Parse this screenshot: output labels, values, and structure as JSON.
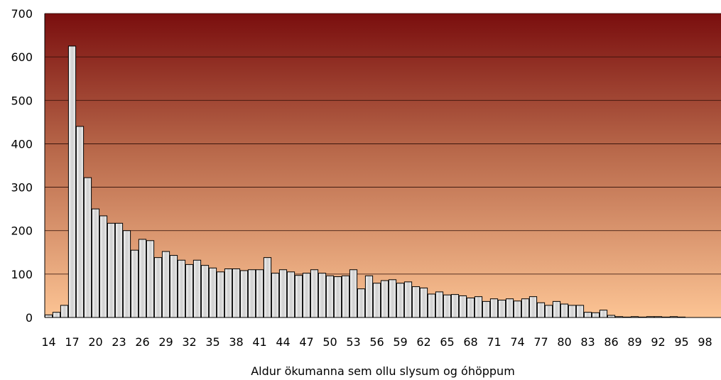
{
  "chart_data": {
    "type": "bar",
    "title": "",
    "xlabel": "Aldur ökumanna sem ollu slysum og óhöppum",
    "ylabel": "",
    "ylim": [
      0,
      700
    ],
    "yticks": [
      0,
      100,
      200,
      300,
      400,
      500,
      600,
      700
    ],
    "grid": true,
    "x_tick_labels": [
      14,
      17,
      20,
      23,
      26,
      29,
      32,
      35,
      38,
      41,
      44,
      47,
      50,
      53,
      56,
      59,
      62,
      65,
      68,
      71,
      74,
      77,
      80,
      83,
      86,
      89,
      92,
      95,
      98
    ],
    "categories": [
      14,
      15,
      16,
      17,
      18,
      19,
      20,
      21,
      22,
      23,
      24,
      25,
      26,
      27,
      28,
      29,
      30,
      31,
      32,
      33,
      34,
      35,
      36,
      37,
      38,
      39,
      40,
      41,
      42,
      43,
      44,
      45,
      46,
      47,
      48,
      49,
      50,
      51,
      52,
      53,
      54,
      55,
      56,
      57,
      58,
      59,
      60,
      61,
      62,
      63,
      64,
      65,
      66,
      67,
      68,
      69,
      70,
      71,
      72,
      73,
      74,
      75,
      76,
      77,
      78,
      79,
      80,
      81,
      82,
      83,
      84,
      85,
      86,
      87,
      88,
      89,
      90,
      91,
      92,
      93,
      94,
      95,
      96,
      97,
      98
    ],
    "values": [
      6,
      12,
      28,
      625,
      440,
      322,
      250,
      234,
      217,
      217,
      200,
      155,
      180,
      177,
      138,
      152,
      143,
      132,
      122,
      132,
      120,
      114,
      105,
      112,
      112,
      108,
      110,
      110,
      138,
      102,
      110,
      105,
      97,
      102,
      110,
      102,
      96,
      94,
      96,
      110,
      66,
      96,
      79,
      85,
      87,
      79,
      82,
      71,
      68,
      54,
      59,
      52,
      53,
      50,
      45,
      48,
      37,
      43,
      40,
      43,
      38,
      43,
      48,
      34,
      28,
      37,
      31,
      28,
      28,
      12,
      11,
      17,
      5,
      2,
      1,
      2,
      1,
      2,
      2,
      1,
      2,
      1,
      0,
      0,
      0
    ],
    "colors": {
      "background_top": "#7a0e0e",
      "background_mid": "#b8684a",
      "background_bottom": "#fcc494",
      "bar_fill": "#e4e4e4",
      "bar_stroke": "#000000"
    }
  }
}
